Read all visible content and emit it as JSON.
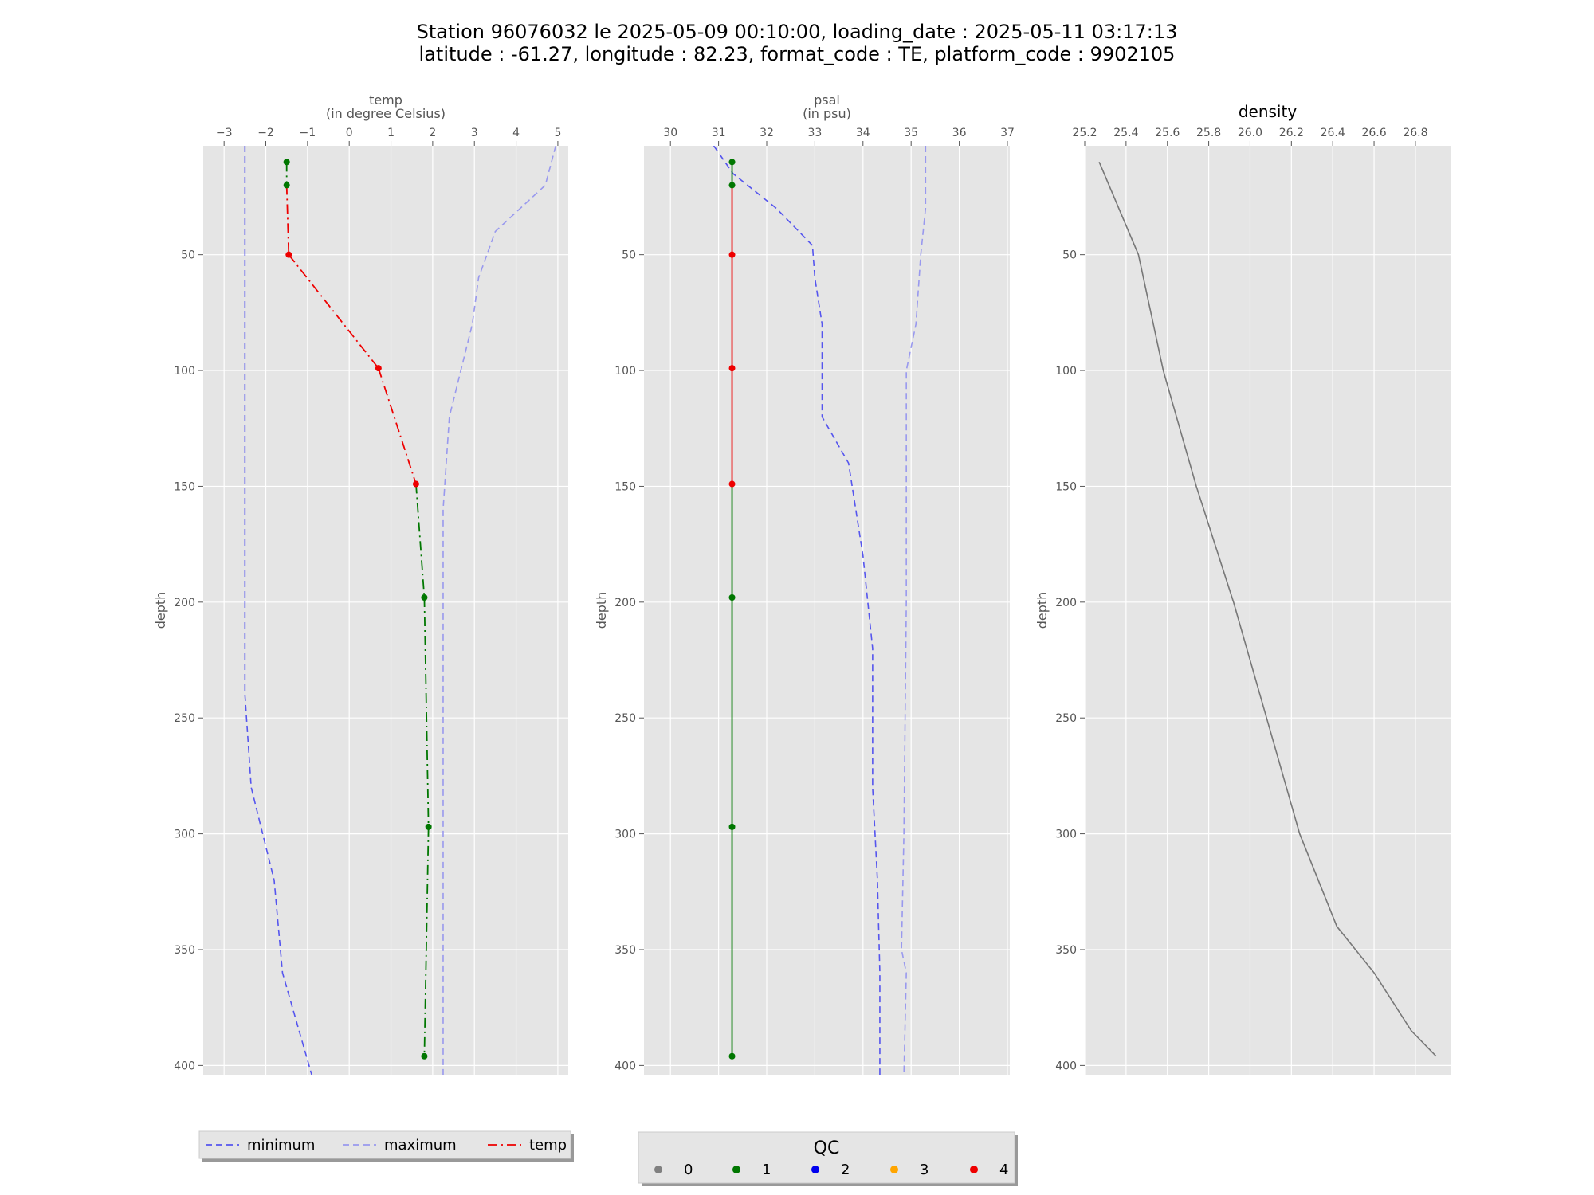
{
  "title": {
    "line1": "Station 96076032 le 2025-05-09 00:10:00, loading_date : 2025-05-11 03:17:13",
    "line2": "latitude : -61.27, longitude : 82.23, format_code : TE, platform_code : 9902105"
  },
  "chart_data": [
    {
      "type": "line",
      "name": "temp",
      "title": "",
      "xlabel": "temp\n(in degree Celsius)",
      "ylabel": "depth",
      "xlim": [
        -3.5,
        5.25
      ],
      "ylim": [
        404,
        3
      ],
      "xticks": [
        -3,
        -2,
        -1,
        0,
        1,
        2,
        3,
        4,
        5
      ],
      "yticks": [
        50,
        100,
        150,
        200,
        250,
        300,
        350,
        400
      ],
      "grid": true,
      "series": [
        {
          "name": "minimum",
          "style": "dashed",
          "color": "#5555ee",
          "x": [
            -2.5,
            -2.5,
            -2.5,
            -2.5,
            -2.5,
            -2.35,
            -1.8,
            -1.6,
            -0.9
          ],
          "y": [
            3,
            50,
            100,
            150,
            240,
            280,
            320,
            360,
            404
          ]
        },
        {
          "name": "maximum",
          "style": "dashed",
          "color": "#9999ee",
          "x": [
            4.95,
            4.7,
            3.5,
            3.1,
            2.95,
            2.4,
            2.25,
            2.25,
            2.25,
            2.25
          ],
          "y": [
            3,
            20,
            40,
            60,
            80,
            120,
            160,
            250,
            350,
            404
          ]
        },
        {
          "name": "temp",
          "style": "dashdot",
          "x": [
            -1.5,
            -1.5,
            -1.45,
            0.7,
            1.6,
            1.8,
            1.9,
            1.8
          ],
          "y": [
            10,
            20,
            50,
            99,
            149,
            198,
            297,
            396
          ],
          "qc": [
            1,
            1,
            4,
            4,
            4,
            1,
            1,
            1
          ]
        }
      ]
    },
    {
      "type": "line",
      "name": "psal",
      "title": "",
      "xlabel": "psal\n(in psu)",
      "ylabel": "depth",
      "xlim": [
        29.45,
        37.05
      ],
      "ylim": [
        404,
        3
      ],
      "xticks": [
        30,
        31,
        32,
        33,
        34,
        35,
        36,
        37
      ],
      "yticks": [
        50,
        100,
        150,
        200,
        250,
        300,
        350,
        400
      ],
      "grid": true,
      "series": [
        {
          "name": "minimum",
          "style": "dashed",
          "color": "#5555ee",
          "x": [
            30.9,
            31.3,
            32.2,
            32.95,
            33.0,
            33.15,
            33.15,
            33.7,
            34.0,
            34.2,
            34.2,
            34.3,
            34.35,
            34.35
          ],
          "y": [
            3,
            15,
            30,
            46,
            60,
            80,
            120,
            140,
            180,
            220,
            280,
            320,
            360,
            404
          ]
        },
        {
          "name": "maximum",
          "style": "dashed",
          "color": "#9999ee",
          "x": [
            35.3,
            35.3,
            35.2,
            35.1,
            34.9,
            34.9,
            34.85,
            34.8,
            34.9,
            34.85
          ],
          "y": [
            3,
            30,
            50,
            80,
            100,
            200,
            300,
            350,
            360,
            404
          ]
        },
        {
          "name": "psal",
          "style": "solid",
          "x": [
            31.28,
            31.28,
            31.28,
            31.28,
            31.28,
            31.28,
            31.28,
            31.28
          ],
          "y": [
            10,
            20,
            50,
            99,
            149,
            198,
            297,
            396
          ],
          "qc": [
            1,
            1,
            4,
            4,
            4,
            1,
            1,
            1
          ]
        }
      ]
    },
    {
      "type": "line",
      "name": "density",
      "title": "density",
      "xlabel": "",
      "ylabel": "depth",
      "xlim": [
        25.2,
        26.97
      ],
      "ylim": [
        404,
        3
      ],
      "xticks": [
        25.2,
        25.4,
        25.6,
        25.8,
        26.0,
        26.2,
        26.4,
        26.6,
        26.8
      ],
      "xticklabels": [
        "25.2",
        "25.4",
        "25.6",
        "25.8",
        "26.0",
        "26.2",
        "26.4",
        "26.6",
        "26.8"
      ],
      "yticks": [
        50,
        100,
        150,
        200,
        250,
        300,
        350,
        400
      ],
      "grid": true,
      "series": [
        {
          "name": "density",
          "style": "solid",
          "color": "#777777",
          "x": [
            25.27,
            25.46,
            25.58,
            25.74,
            25.92,
            26.08,
            26.24,
            26.42,
            26.6,
            26.78,
            26.9
          ],
          "y": [
            10,
            50,
            100,
            150,
            200,
            250,
            300,
            340,
            360,
            385,
            396
          ]
        }
      ]
    }
  ],
  "colors": {
    "qc0": "#808080",
    "qc1": "#007700",
    "qc2": "#0000ee",
    "qc3": "#ffa500",
    "qc4": "#ee0000",
    "minimum": "#5555ee",
    "maximum": "#9999ee",
    "panel_bg": "#e5e5e5",
    "grid": "#ffffff"
  },
  "legend_left": {
    "placement": "bottom-left",
    "items": [
      {
        "label": "minimum",
        "style": "dashed",
        "color": "#5555ee"
      },
      {
        "label": "maximum",
        "style": "dashed",
        "color": "#9999ee"
      },
      {
        "label": "temp",
        "style": "dashdot",
        "color": "#ee0000"
      }
    ]
  },
  "legend_qc": {
    "placement": "bottom-center",
    "title": "QC",
    "items": [
      {
        "label": "0",
        "color": "#808080"
      },
      {
        "label": "1",
        "color": "#007700"
      },
      {
        "label": "2",
        "color": "#0000ee"
      },
      {
        "label": "3",
        "color": "#ffa500"
      },
      {
        "label": "4",
        "color": "#ee0000"
      }
    ]
  }
}
